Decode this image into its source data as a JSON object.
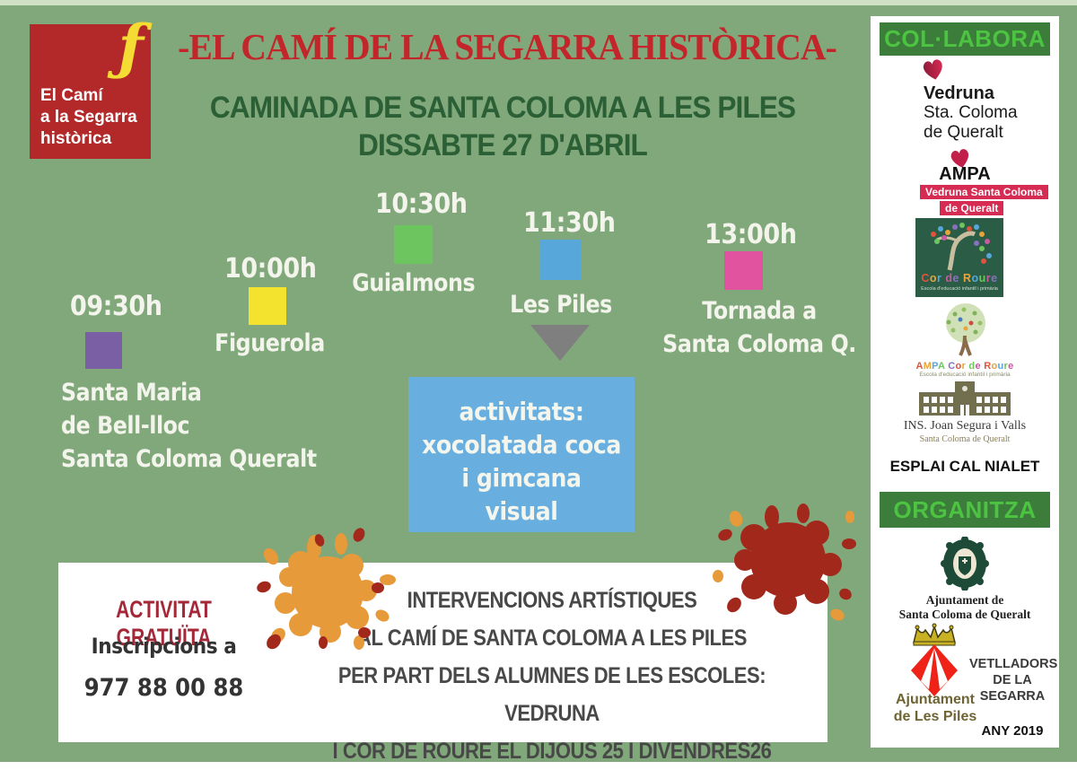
{
  "poster": {
    "logo": {
      "glyph": "ƒ",
      "lines": [
        "El Camí",
        "a la Segarra",
        "històrica"
      ]
    },
    "title": "-EL CAMÍ DE LA SEGARRA HISTÒRICA-",
    "subtitle_line1": "CAMINADA DE SANTA COLOMA A LES PILES",
    "subtitle_line2": "DISSABTE 27 D'ABRIL"
  },
  "timeline": {
    "stops": [
      {
        "time": "09:30h",
        "color": "#7a5fa5",
        "name_lines": [
          "Santa Maria",
          "de Bell-lloc",
          "Santa Coloma Queralt"
        ]
      },
      {
        "time": "10:00h",
        "color": "#f3e32f",
        "name_lines": [
          "Figuerola"
        ]
      },
      {
        "time": "10:30h",
        "color": "#6cc55e",
        "name_lines": [
          "Guialmons"
        ]
      },
      {
        "time": "11:30h",
        "color": "#57a7da",
        "name_lines": [
          "Les Piles"
        ]
      },
      {
        "time": "13:00h",
        "color": "#e2539f",
        "name_lines": [
          "Tornada a",
          "Santa Coloma Q."
        ]
      }
    ]
  },
  "activities_box": {
    "lines": [
      "activitats:",
      "xocolatada coca",
      "i gimcana",
      "visual"
    ]
  },
  "info_box": {
    "free_activity": "ACTIVITAT GRATUÏTA",
    "inscriptions_label": "Inscripcions a",
    "phone": "977 88 00 88",
    "lines": [
      "INTERVENCIONS ARTÍSTIQUES",
      "AL  CAMÍ DE SANTA COLOMA  A LES PILES",
      "PER PART DELS ALUMNES DE LES ESCOLES: VEDRUNA",
      "I COR DE ROURE EL DIJOUS 25  I DIVENDRES26"
    ]
  },
  "sidebar": {
    "collabora_header": "COL·LABORA",
    "organitza_header": "ORGANITZA",
    "vedruna": {
      "name": "Vedruna",
      "line2": "Sta. Coloma",
      "line3": "de Queralt"
    },
    "ampa": {
      "name": "AMPA",
      "badge_line1": "Vedruna Santa Coloma",
      "badge_line2": "de Queralt"
    },
    "cor_de_roure": {
      "name": "Cor de Roure",
      "subtitle": "Escola d'educació infantil i primària"
    },
    "ampa_cor_de_roure": {
      "name": "AMPA Cor de Roure",
      "subtitle": "Escola d'educació infantil i primària"
    },
    "ins": {
      "name": "INS. Joan Segura i Valls",
      "subtitle": "Santa Coloma de Queralt"
    },
    "esplai": "ESPLAI CAL NIALET",
    "ajuntament_scq": {
      "line1": "Ajuntament de",
      "line2": "Santa Coloma de Queralt"
    },
    "ajuntament_les_piles": {
      "line1": "Ajuntament",
      "line2": "de Les Piles"
    },
    "vetlladors": {
      "line1": "VETLLADORS",
      "line2": "DE LA",
      "line3": "SEGARRA"
    },
    "year": "ANY 2019"
  },
  "colors": {
    "background": "#81a87a",
    "title_red": "#c2262b",
    "subtitle_green": "#2b5f36",
    "logo_red": "#b3292a",
    "logo_yellow": "#f5dc35",
    "timeline_text": "#f3f5ec",
    "triangle_gray": "#7f7f7f",
    "activities_blue": "#68aede",
    "free_activity_red": "#a42837",
    "info_dark": "#484848",
    "header_bar_green": "#3c7d3c",
    "header_text_green": "#4cc441",
    "badge_pink": "#d62b52",
    "splat_orange": "#e79a3a",
    "splat_red": "#a2281c",
    "olive": "#716f4e",
    "crest_green": "#1d4b38",
    "les_piles_text": "#6e6433",
    "letter_palette": [
      "#e0533c",
      "#e8a33c",
      "#57a7da",
      "#6cc55e",
      "#c85aa0",
      "#8a6fc0"
    ]
  }
}
